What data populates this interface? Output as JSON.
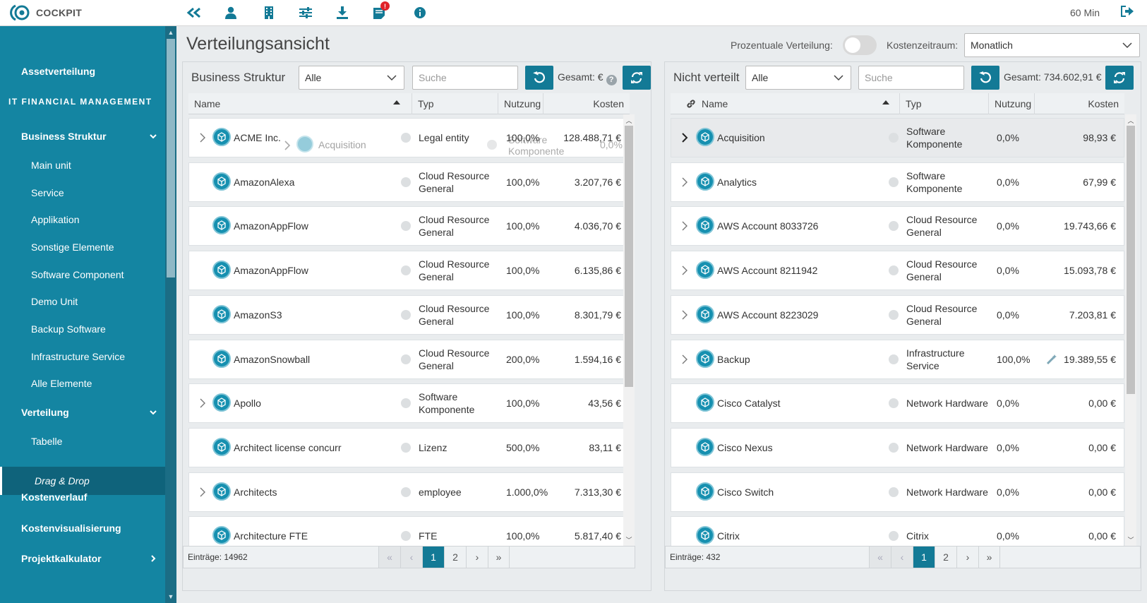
{
  "app": {
    "brand": "COCKPIT",
    "session": "60 Min"
  },
  "topbar_icons": [
    "collapse-double-chevron-icon",
    "user-icon",
    "building-icon",
    "sliders-icon",
    "download-icon",
    "notes-icon",
    "info-icon"
  ],
  "notification_badge": "!",
  "sidebar": {
    "items": [
      {
        "label": "Assetverteilung",
        "level": 1
      },
      {
        "label": "IT FINANCIAL MANAGEMENT",
        "level": 0
      },
      {
        "label": "Business Struktur",
        "level": 1,
        "chevron": "down"
      },
      {
        "label": "Main unit",
        "level": 2
      },
      {
        "label": "Service",
        "level": 2
      },
      {
        "label": "Applikation",
        "level": 2
      },
      {
        "label": "Sonstige Elemente",
        "level": 2
      },
      {
        "label": "Software Component",
        "level": 2
      },
      {
        "label": "Demo Unit",
        "level": 2
      },
      {
        "label": "Backup Software",
        "level": 2
      },
      {
        "label": "Infrastructure Service",
        "level": 2
      },
      {
        "label": "Alle Elemente",
        "level": 2
      },
      {
        "label": "Verteilung",
        "level": 1,
        "chevron": "down"
      },
      {
        "label": "Tabelle",
        "level": 2
      },
      {
        "label": "Drag & Drop",
        "level": 2,
        "active": true
      },
      {
        "label": "Kostenverlauf",
        "level": 1
      },
      {
        "label": "Kostenvisualisierung",
        "level": 1
      },
      {
        "label": "Projektkalkulator",
        "level": 1,
        "chevron": "right"
      }
    ]
  },
  "header": {
    "title": "Verteilungsansicht",
    "percent_label": "Prozentuale Verteilung:",
    "percent_toggle": false,
    "period_label": "Kostenzeitraum:",
    "period_value": "Monatlich"
  },
  "left": {
    "title": "Business Struktur",
    "filter": "Alle",
    "search_placeholder": "Suche",
    "total_label": "Gesamt: €",
    "help": "?",
    "columns": [
      "Name",
      "Typ",
      "Nutzung",
      "Kosten"
    ],
    "rows": [
      {
        "name": "ACME Inc.",
        "type": "Legal entity",
        "usage": "100,0%",
        "cost": "128.488,71 €",
        "expandable": true
      },
      {
        "name": "AmazonAlexa",
        "type": "Cloud Resource General",
        "usage": "100,0%",
        "cost": "3.207,76 €",
        "expandable": false
      },
      {
        "name": "AmazonAppFlow",
        "type": "Cloud Resource General",
        "usage": "100,0%",
        "cost": "4.036,70 €",
        "expandable": false
      },
      {
        "name": "AmazonAppFlow",
        "type": "Cloud Resource General",
        "usage": "100,0%",
        "cost": "6.135,86 €",
        "expandable": false
      },
      {
        "name": "AmazonS3",
        "type": "Cloud Resource General",
        "usage": "100,0%",
        "cost": "8.301,79 €",
        "expandable": false
      },
      {
        "name": "AmazonSnowball",
        "type": "Cloud Resource General",
        "usage": "200,0%",
        "cost": "1.594,16 €",
        "expandable": false
      },
      {
        "name": "Apollo",
        "type": "Software Komponente",
        "usage": "100,0%",
        "cost": "43,56 €",
        "expandable": true
      },
      {
        "name": "Architect license concurr",
        "type": "Lizenz",
        "usage": "500,0%",
        "cost": "83,11 €",
        "expandable": false
      },
      {
        "name": "Architects",
        "type": "employee",
        "usage": "1.000,0%",
        "cost": "7.313,30 €",
        "expandable": true
      },
      {
        "name": "Architecture FTE",
        "type": "FTE",
        "usage": "100,0%",
        "cost": "5.817,40 €",
        "expandable": false
      }
    ],
    "entries": "Einträge: 14962",
    "pages": [
      "«",
      "‹",
      "1",
      "2",
      "›",
      "»"
    ],
    "current_page": "1"
  },
  "drag_ghost": {
    "name": "Acquisition",
    "type": "Software Komponente",
    "usage": "0,0%"
  },
  "right": {
    "title": "Nicht verteilt",
    "filter": "Alle",
    "search_placeholder": "Suche",
    "total_label": "Gesamt: 734.602,91 €",
    "columns": [
      "Name",
      "Typ",
      "Nutzung",
      "Kosten"
    ],
    "rows": [
      {
        "name": "Acquisition",
        "type": "Software Komponente",
        "usage": "0,0%",
        "cost": "98,93 €",
        "expandable": true,
        "highlight": true
      },
      {
        "name": "Analytics",
        "type": "Software Komponente",
        "usage": "0,0%",
        "cost": "67,99 €",
        "expandable": true
      },
      {
        "name": "AWS Account 8033726",
        "type": "Cloud Resource General",
        "usage": "0,0%",
        "cost": "19.743,66 €",
        "expandable": true
      },
      {
        "name": "AWS Account 8211942",
        "type": "Cloud Resource General",
        "usage": "0,0%",
        "cost": "15.093,78 €",
        "expandable": true
      },
      {
        "name": "AWS Account 8223029",
        "type": "Cloud Resource General",
        "usage": "0,0%",
        "cost": "7.203,81 €",
        "expandable": true
      },
      {
        "name": "Backup",
        "type": "Infrastructure Service",
        "usage": "100,0%",
        "cost": "19.389,55 €",
        "expandable": true,
        "edit": true
      },
      {
        "name": "Cisco Catalyst",
        "type": "Network Hardware",
        "usage": "0,0%",
        "cost": "0,00 €",
        "expandable": false
      },
      {
        "name": "Cisco Nexus",
        "type": "Network Hardware",
        "usage": "0,0%",
        "cost": "0,00 €",
        "expandable": false
      },
      {
        "name": "Cisco Switch",
        "type": "Network Hardware",
        "usage": "0,0%",
        "cost": "0,00 €",
        "expandable": false
      },
      {
        "name": "Citrix",
        "type": "Citrix",
        "usage": "0,0%",
        "cost": "0,00 €",
        "expandable": false
      }
    ],
    "entries": "Einträge: 432",
    "pages": [
      "«",
      "‹",
      "1",
      "2",
      "›",
      "»"
    ],
    "current_page": "1"
  }
}
